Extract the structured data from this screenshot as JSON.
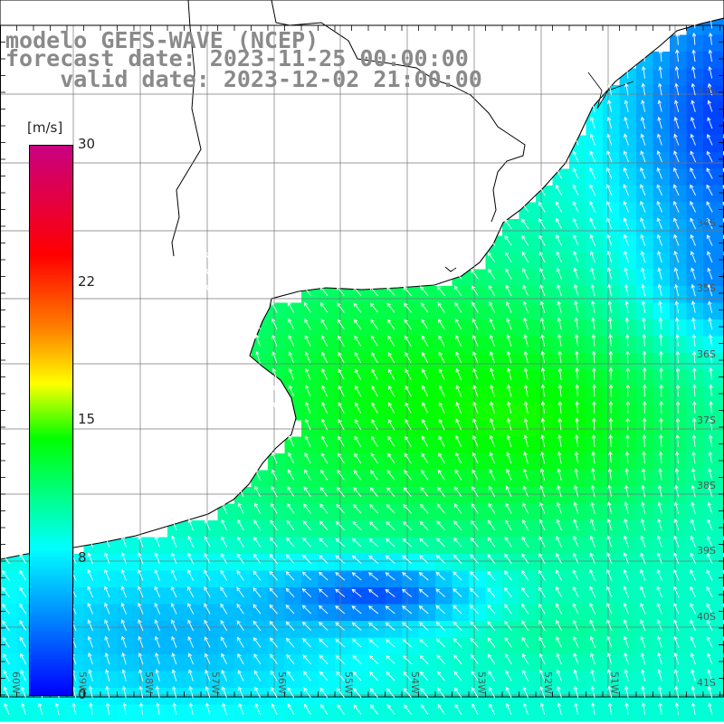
{
  "title": {
    "line1": "modelo GEFS-WAVE (NCEP)",
    "line2": "forecast date: 2023-11-25 00:00:00",
    "line3": "valid date: 2023-12-02 21:00:00"
  },
  "colorbar": {
    "unit": "[m/s]",
    "ticks": [
      "30",
      "22",
      "15",
      "8",
      "0"
    ],
    "tick_values": [
      30,
      22,
      15,
      8,
      0
    ],
    "colors": {
      "0": "#0000ff",
      "4": "#0080ff",
      "8": "#00ffff",
      "11": "#00ff80",
      "14": "#00ff00",
      "17": "#ffff00",
      "20": "#ff8000",
      "24": "#ff0000",
      "30": "#c80080"
    }
  },
  "map": {
    "latitude_labels": [
      "32S",
      "33S",
      "34S",
      "35S",
      "36S",
      "37S",
      "38S",
      "39S",
      "40S",
      "41S"
    ],
    "longitude_labels": [
      "60W",
      "59W",
      "58W",
      "57W",
      "56W",
      "55W",
      "54W",
      "53W",
      "52W",
      "51W"
    ],
    "land_color": "#ffffff",
    "grid_color": "#777777",
    "field": "wind speed",
    "field_range": [
      0,
      30
    ]
  }
}
